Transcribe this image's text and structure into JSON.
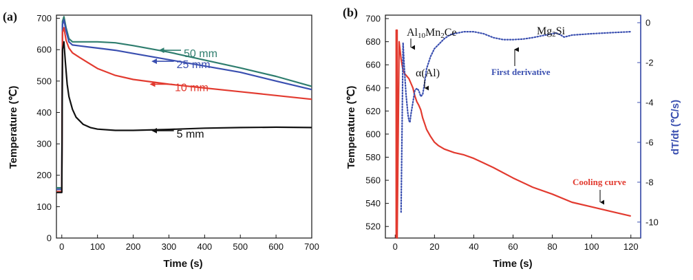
{
  "chart_data": [
    {
      "panel_label": "(a)",
      "type": "line",
      "xlabel": "Time (s)",
      "ylabel": "Temperature (℃)",
      "xlim": [
        -15,
        700
      ],
      "ylim": [
        0,
        710
      ],
      "xticks": [
        0,
        100,
        200,
        300,
        400,
        500,
        600,
        700
      ],
      "yticks": [
        0,
        100,
        200,
        300,
        400,
        500,
        600,
        700
      ],
      "series": [
        {
          "name": "50 mm",
          "color": "#2e7d6e",
          "x": [
            -15,
            0,
            2,
            6,
            12,
            20,
            30,
            50,
            100,
            150,
            200,
            300,
            400,
            500,
            600,
            700
          ],
          "y": [
            160,
            160,
            690,
            705,
            670,
            635,
            625,
            625,
            625,
            622,
            613,
            592,
            567,
            542,
            515,
            483
          ]
        },
        {
          "name": "25 mm",
          "color": "#3a4fb0",
          "x": [
            -15,
            0,
            2,
            6,
            12,
            20,
            30,
            50,
            100,
            150,
            200,
            300,
            400,
            500,
            600,
            700
          ],
          "y": [
            155,
            155,
            680,
            695,
            660,
            625,
            615,
            612,
            605,
            598,
            588,
            568,
            548,
            528,
            500,
            473
          ]
        },
        {
          "name": "10 mm",
          "color": "#e23a2f",
          "x": [
            -15,
            0,
            2,
            6,
            12,
            20,
            30,
            50,
            100,
            150,
            200,
            300,
            400,
            500,
            600,
            700
          ],
          "y": [
            148,
            148,
            655,
            670,
            630,
            605,
            590,
            575,
            540,
            518,
            505,
            490,
            478,
            466,
            454,
            442
          ]
        },
        {
          "name": "5 mm",
          "color": "#111111",
          "x": [
            -15,
            0,
            2,
            6,
            10,
            15,
            20,
            30,
            40,
            60,
            80,
            100,
            150,
            200,
            300,
            400,
            500,
            600,
            700
          ],
          "y": [
            145,
            145,
            600,
            625,
            560,
            490,
            450,
            410,
            385,
            362,
            352,
            347,
            343,
            343,
            346,
            350,
            352,
            353,
            352
          ]
        }
      ],
      "annotations": [
        {
          "text": "50 mm",
          "color": "#2e7d6e",
          "x_data": 330,
          "y_data": 598
        },
        {
          "text": "25 mm",
          "color": "#3a4fb0",
          "x_data": 310,
          "y_data": 563
        },
        {
          "text": "10 mm",
          "color": "#e23a2f",
          "x_data": 305,
          "y_data": 490
        },
        {
          "text": "5 mm",
          "color": "#111111",
          "x_data": 310,
          "y_data": 342
        }
      ]
    },
    {
      "panel_label": "(b)",
      "type": "line",
      "xlabel": "Time (s)",
      "ylabel": "Temperature (℃)",
      "y2label": "dT/dt  (℃/s)",
      "xlim": [
        -5,
        125
      ],
      "ylim": [
        510,
        703
      ],
      "y2lim": [
        -10.8,
        0.38
      ],
      "xticks": [
        0,
        20,
        40,
        60,
        80,
        100,
        120
      ],
      "yticks": [
        520,
        540,
        560,
        580,
        600,
        620,
        640,
        660,
        680,
        700
      ],
      "y2ticks": [
        0,
        -2,
        -4,
        -6,
        -8,
        -10
      ],
      "series": [
        {
          "name": "Cooling curve",
          "color": "#e23a2f",
          "axis": "left",
          "x": [
            0.5,
            0.5,
            1.0,
            1.0,
            2,
            3,
            4,
            5,
            6,
            7,
            8,
            9,
            10,
            11,
            12,
            13,
            14,
            15,
            16,
            18,
            20,
            22,
            25,
            30,
            35,
            40,
            45,
            50,
            60,
            70,
            80,
            90,
            100,
            110,
            120
          ],
          "y": [
            505,
            690,
            690,
            505,
            680,
            665,
            655,
            652,
            650,
            648,
            644,
            640,
            633,
            628,
            625,
            621,
            614,
            609,
            604,
            598,
            593,
            590,
            587,
            584,
            582,
            579,
            575,
            571,
            562,
            554,
            548,
            541,
            537,
            533,
            529
          ]
        },
        {
          "name": "First derivative",
          "color": "#3a4fb0",
          "axis": "right",
          "style": "dotted",
          "x": [
            3,
            4,
            4.5,
            5,
            5.5,
            6,
            6.5,
            7,
            7.5,
            8,
            9,
            10,
            11,
            12,
            13,
            14,
            15,
            16,
            18,
            20,
            22,
            25,
            28,
            30,
            35,
            40,
            45,
            50,
            55,
            60,
            65,
            70,
            75,
            80,
            82,
            84,
            86,
            90,
            100,
            110,
            120
          ],
          "y": [
            -9.5,
            -1.0,
            -2.0,
            -2.8,
            -3.6,
            -4.1,
            -4.6,
            -4.9,
            -5.0,
            -4.6,
            -4.0,
            -3.4,
            -3.3,
            -3.4,
            -3.7,
            -3.6,
            -3.0,
            -2.3,
            -1.7,
            -1.3,
            -1.1,
            -0.8,
            -0.6,
            -0.55,
            -0.45,
            -0.45,
            -0.55,
            -0.75,
            -0.85,
            -0.85,
            -0.82,
            -0.75,
            -0.65,
            -0.55,
            -0.52,
            -0.6,
            -0.72,
            -0.62,
            -0.55,
            -0.5,
            -0.45
          ]
        }
      ],
      "annotations": [
        {
          "text": "Al10Mn2Ce",
          "base": "Al",
          "sub1": "10",
          "mid": "Mn",
          "sub2": "2",
          "tail": "Ce"
        },
        {
          "text": "α(Al)"
        },
        {
          "text": "Mg2Si",
          "base": "Mg",
          "sub1": "2",
          "tail": "Si"
        },
        {
          "text": "First derivative",
          "color": "#3a4fb0"
        },
        {
          "text": "Cooling curve",
          "color": "#e23a2f"
        }
      ]
    }
  ]
}
